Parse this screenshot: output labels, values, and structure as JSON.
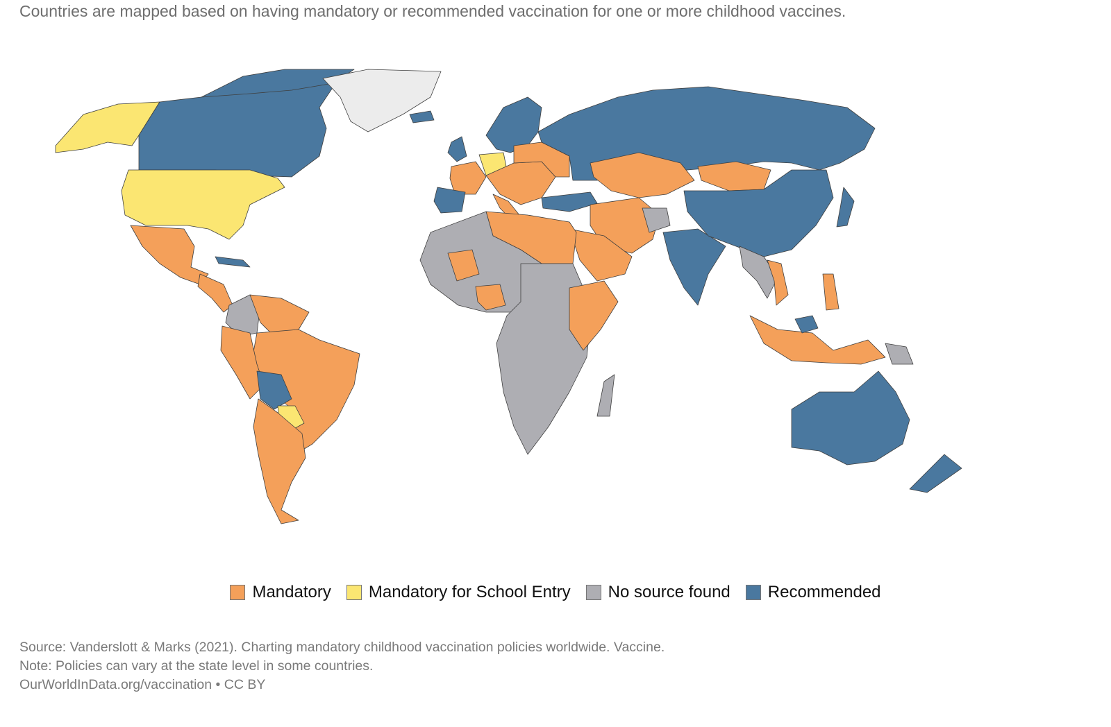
{
  "subtitle": "Countries are mapped based on having mandatory or recommended vaccination for one or more childhood vaccines.",
  "colors": {
    "mandatory": "#f4a05a",
    "school": "#fbe672",
    "nosource": "#aeaeb3",
    "recommended": "#4a789f",
    "nodata": "#ececec"
  },
  "legend": [
    {
      "label": "Mandatory",
      "color": "#f4a05a"
    },
    {
      "label": "Mandatory for School Entry",
      "color": "#fbe672"
    },
    {
      "label": "No source found",
      "color": "#aeaeb3"
    },
    {
      "label": "Recommended",
      "color": "#4a789f"
    }
  ],
  "footer": {
    "source": "Source: Vanderslott & Marks (2021). Charting mandatory childhood vaccination policies worldwide. Vaccine.",
    "note": "Note: Policies can vary at the state level in some countries.",
    "credit": "OurWorldInData.org/vaccination • CC BY"
  }
}
